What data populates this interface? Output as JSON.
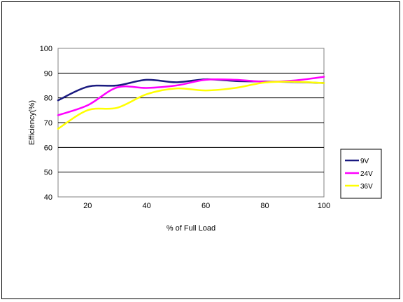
{
  "chart_data": {
    "type": "line",
    "title": "",
    "xlabel": "% of Full Load",
    "ylabel": "Efficiency(%)",
    "xlim": [
      10,
      100
    ],
    "ylim": [
      40,
      100
    ],
    "x_ticks": [
      "20",
      "40",
      "60",
      "80",
      "100"
    ],
    "y_ticks": [
      "40",
      "50",
      "60",
      "70",
      "80",
      "90",
      "100"
    ],
    "grid": "horizontal",
    "legend_position": "right",
    "x": [
      10,
      20,
      30,
      40,
      50,
      60,
      70,
      80,
      90,
      100
    ],
    "series": [
      {
        "name": "9V",
        "color": "#1a1a80",
        "values": [
          79,
          84.5,
          85,
          87.3,
          86.3,
          87.5,
          86.8,
          86.6,
          86.4,
          86
        ]
      },
      {
        "name": "24V",
        "color": "#ff00ff",
        "values": [
          73,
          77,
          84.2,
          84,
          85,
          87.3,
          87.3,
          86.5,
          87,
          88.5
        ]
      },
      {
        "name": "36V",
        "color": "#ffff00",
        "values": [
          67.5,
          75,
          76,
          81.5,
          83.8,
          83,
          84,
          86.2,
          86.5,
          86
        ]
      }
    ]
  }
}
